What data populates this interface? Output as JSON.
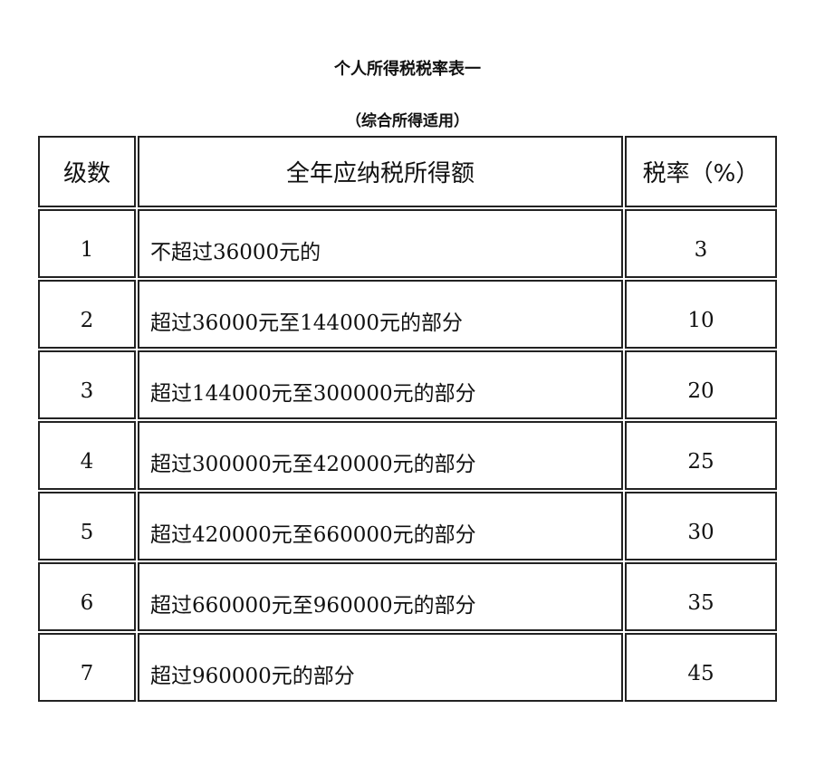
{
  "title": "个人所得税税率表一",
  "subtitle": "（综合所得适用）",
  "table": {
    "headers": [
      "级数",
      "全年应纳税所得额",
      "税率（%）"
    ],
    "rows": [
      [
        "1",
        "不超过36000元的",
        "3"
      ],
      [
        "2",
        "超过36000元至144000元的部分",
        "10"
      ],
      [
        "3",
        "超过144000元至300000元的部分",
        "20"
      ],
      [
        "4",
        "超过300000元至420000元的部分",
        "25"
      ],
      [
        "5",
        "超过420000元至660000元的部分",
        "30"
      ],
      [
        "6",
        "超过660000元至960000元的部分",
        "35"
      ],
      [
        "7",
        "超过960000元的部分",
        "45"
      ]
    ]
  }
}
